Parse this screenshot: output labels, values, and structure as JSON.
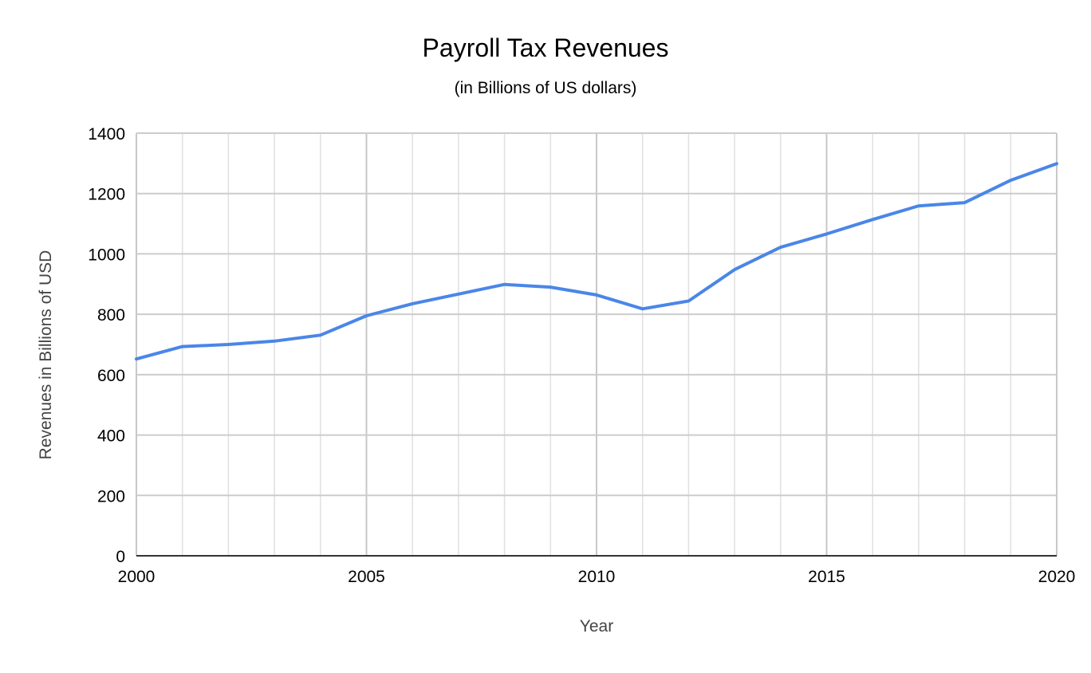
{
  "chart_data": {
    "type": "line",
    "title": "Payroll Tax Revenues",
    "subtitle": "(in Billions of US dollars)",
    "xlabel": "Year",
    "ylabel": "Revenues in Billions of USD",
    "x": [
      2000,
      2001,
      2002,
      2003,
      2004,
      2005,
      2006,
      2007,
      2008,
      2009,
      2010,
      2011,
      2012,
      2013,
      2014,
      2015,
      2016,
      2017,
      2018,
      2019,
      2020
    ],
    "series": [
      {
        "name": "Payroll Tax Revenues",
        "color": "#4a86e8",
        "values": [
          652,
          693,
          700,
          711,
          731,
          795,
          835,
          867,
          899,
          890,
          864,
          818,
          844,
          948,
          1022,
          1066,
          1114,
          1159,
          1170,
          1244,
          1299
        ]
      }
    ],
    "xlim": [
      2000,
      2020
    ],
    "ylim": [
      0,
      1400
    ],
    "x_ticks": [
      "2000",
      "2005",
      "2010",
      "2015",
      "2020"
    ],
    "y_ticks": [
      "0",
      "200",
      "400",
      "600",
      "800",
      "1000",
      "1200",
      "1400"
    ],
    "grid": true,
    "legend": "none"
  }
}
